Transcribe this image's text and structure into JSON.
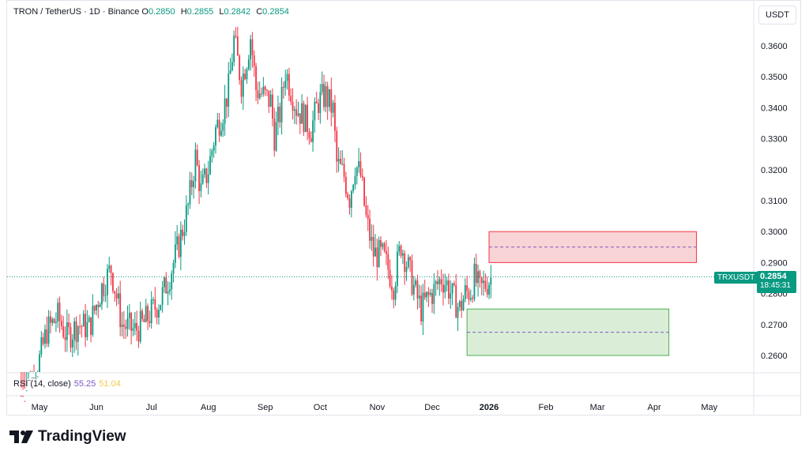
{
  "legend": {
    "symbol": "TRON / TetherUS · 1D · Binance",
    "o_label": "O",
    "o": "0.2850",
    "h_label": "H",
    "h": "0.2855",
    "l_label": "L",
    "l": "0.2842",
    "c_label": "C",
    "c": "0.2854"
  },
  "currency": "USDT",
  "price_tag": {
    "symbol": "TRXUSDT",
    "price": "0.2854",
    "countdown": "18:45:31"
  },
  "rsi": {
    "label": "RSI (14, close)",
    "value_a": "55.25",
    "value_b": "51.04"
  },
  "brand": "TradingView",
  "colors": {
    "up": "#089981",
    "down": "#f23645",
    "short_zone": "#f7c5c8",
    "long_zone": "#cde8c9",
    "zone_midline": "#7e57c2"
  },
  "chart_data": {
    "type": "candlestick",
    "y_ticks": [
      "0.3600",
      "0.3500",
      "0.3400",
      "0.3300",
      "0.3200",
      "0.3100",
      "0.3000",
      "0.2900",
      "0.2800",
      "0.2700",
      "0.2600"
    ],
    "x_ticks": [
      {
        "label": "May",
        "bold": false
      },
      {
        "label": "Jun",
        "bold": false
      },
      {
        "label": "Jul",
        "bold": false
      },
      {
        "label": "Aug",
        "bold": false
      },
      {
        "label": "Sep",
        "bold": false
      },
      {
        "label": "Oct",
        "bold": false
      },
      {
        "label": "Nov",
        "bold": false
      },
      {
        "label": "Dec",
        "bold": false
      },
      {
        "label": "2026",
        "bold": true
      },
      {
        "label": "Feb",
        "bold": false
      },
      {
        "label": "Mar",
        "bold": false
      },
      {
        "label": "Apr",
        "bold": false
      },
      {
        "label": "May",
        "bold": false
      }
    ],
    "ylim": [
      0.2545,
      0.3715
    ],
    "last_price": 0.2854,
    "path": [
      [
        "2025-04-21",
        0.247
      ],
      [
        "2025-04-29",
        0.254
      ],
      [
        "2025-05-05",
        0.268
      ],
      [
        "2025-05-11",
        0.2725
      ],
      [
        "2025-05-16",
        0.266
      ],
      [
        "2025-05-22",
        0.27
      ],
      [
        "2025-05-28",
        0.269
      ],
      [
        "2025-06-04",
        0.282
      ],
      [
        "2025-06-09",
        0.288
      ],
      [
        "2025-06-15",
        0.27
      ],
      [
        "2025-06-22",
        0.268
      ],
      [
        "2025-06-27",
        0.2705
      ],
      [
        "2025-07-01",
        0.274
      ],
      [
        "2025-07-06",
        0.278
      ],
      [
        "2025-07-11",
        0.286
      ],
      [
        "2025-07-16",
        0.296
      ],
      [
        "2025-07-21",
        0.308
      ],
      [
        "2025-07-25",
        0.324
      ],
      [
        "2025-07-28",
        0.313
      ],
      [
        "2025-08-01",
        0.32
      ],
      [
        "2025-08-05",
        0.333
      ],
      [
        "2025-08-09",
        0.339
      ],
      [
        "2025-08-12",
        0.346
      ],
      [
        "2025-08-15",
        0.362
      ],
      [
        "2025-08-17",
        0.355
      ],
      [
        "2025-08-19",
        0.348
      ],
      [
        "2025-08-22",
        0.356
      ],
      [
        "2025-08-24",
        0.363
      ],
      [
        "2025-08-27",
        0.346
      ],
      [
        "2025-08-31",
        0.344
      ],
      [
        "2025-09-04",
        0.342
      ],
      [
        "2025-09-06",
        0.331
      ],
      [
        "2025-09-09",
        0.338
      ],
      [
        "2025-09-12",
        0.352
      ],
      [
        "2025-09-15",
        0.346
      ],
      [
        "2025-09-18",
        0.34
      ],
      [
        "2025-09-22",
        0.337
      ],
      [
        "2025-09-26",
        0.333
      ],
      [
        "2025-09-30",
        0.342
      ],
      [
        "2025-10-04",
        0.344
      ],
      [
        "2025-10-08",
        0.339
      ],
      [
        "2025-10-10",
        0.322
      ],
      [
        "2025-10-14",
        0.318
      ],
      [
        "2025-10-17",
        0.311
      ],
      [
        "2025-10-20",
        0.322
      ],
      [
        "2025-10-23",
        0.318
      ],
      [
        "2025-10-26",
        0.304
      ],
      [
        "2025-10-30",
        0.293
      ],
      [
        "2025-11-04",
        0.292
      ],
      [
        "2025-11-07",
        0.288
      ],
      [
        "2025-11-10",
        0.283
      ],
      [
        "2025-11-14",
        0.296
      ],
      [
        "2025-11-18",
        0.288
      ],
      [
        "2025-11-22",
        0.28
      ],
      [
        "2025-11-25",
        0.275
      ],
      [
        "2025-11-28",
        0.278
      ],
      [
        "2025-12-02",
        0.281
      ],
      [
        "2025-12-06",
        0.285
      ],
      [
        "2025-12-09",
        0.283
      ],
      [
        "2025-12-12",
        0.279
      ],
      [
        "2025-12-16",
        0.275
      ],
      [
        "2025-12-19",
        0.28
      ],
      [
        "2025-12-22",
        0.281
      ],
      [
        "2025-12-24",
        0.285
      ],
      [
        "2025-12-27",
        0.281
      ],
      [
        "2025-12-30",
        0.283
      ],
      [
        "2026-01-02",
        0.285
      ]
    ],
    "zones": [
      {
        "name": "short",
        "from": "2026-01-01",
        "to": "2026-04-24",
        "top": 0.3,
        "bottom": 0.29,
        "mid": 0.295
      },
      {
        "name": "long",
        "from": "2025-12-20",
        "to": "2026-04-09",
        "top": 0.275,
        "bottom": 0.26,
        "mid": 0.2675
      }
    ]
  }
}
